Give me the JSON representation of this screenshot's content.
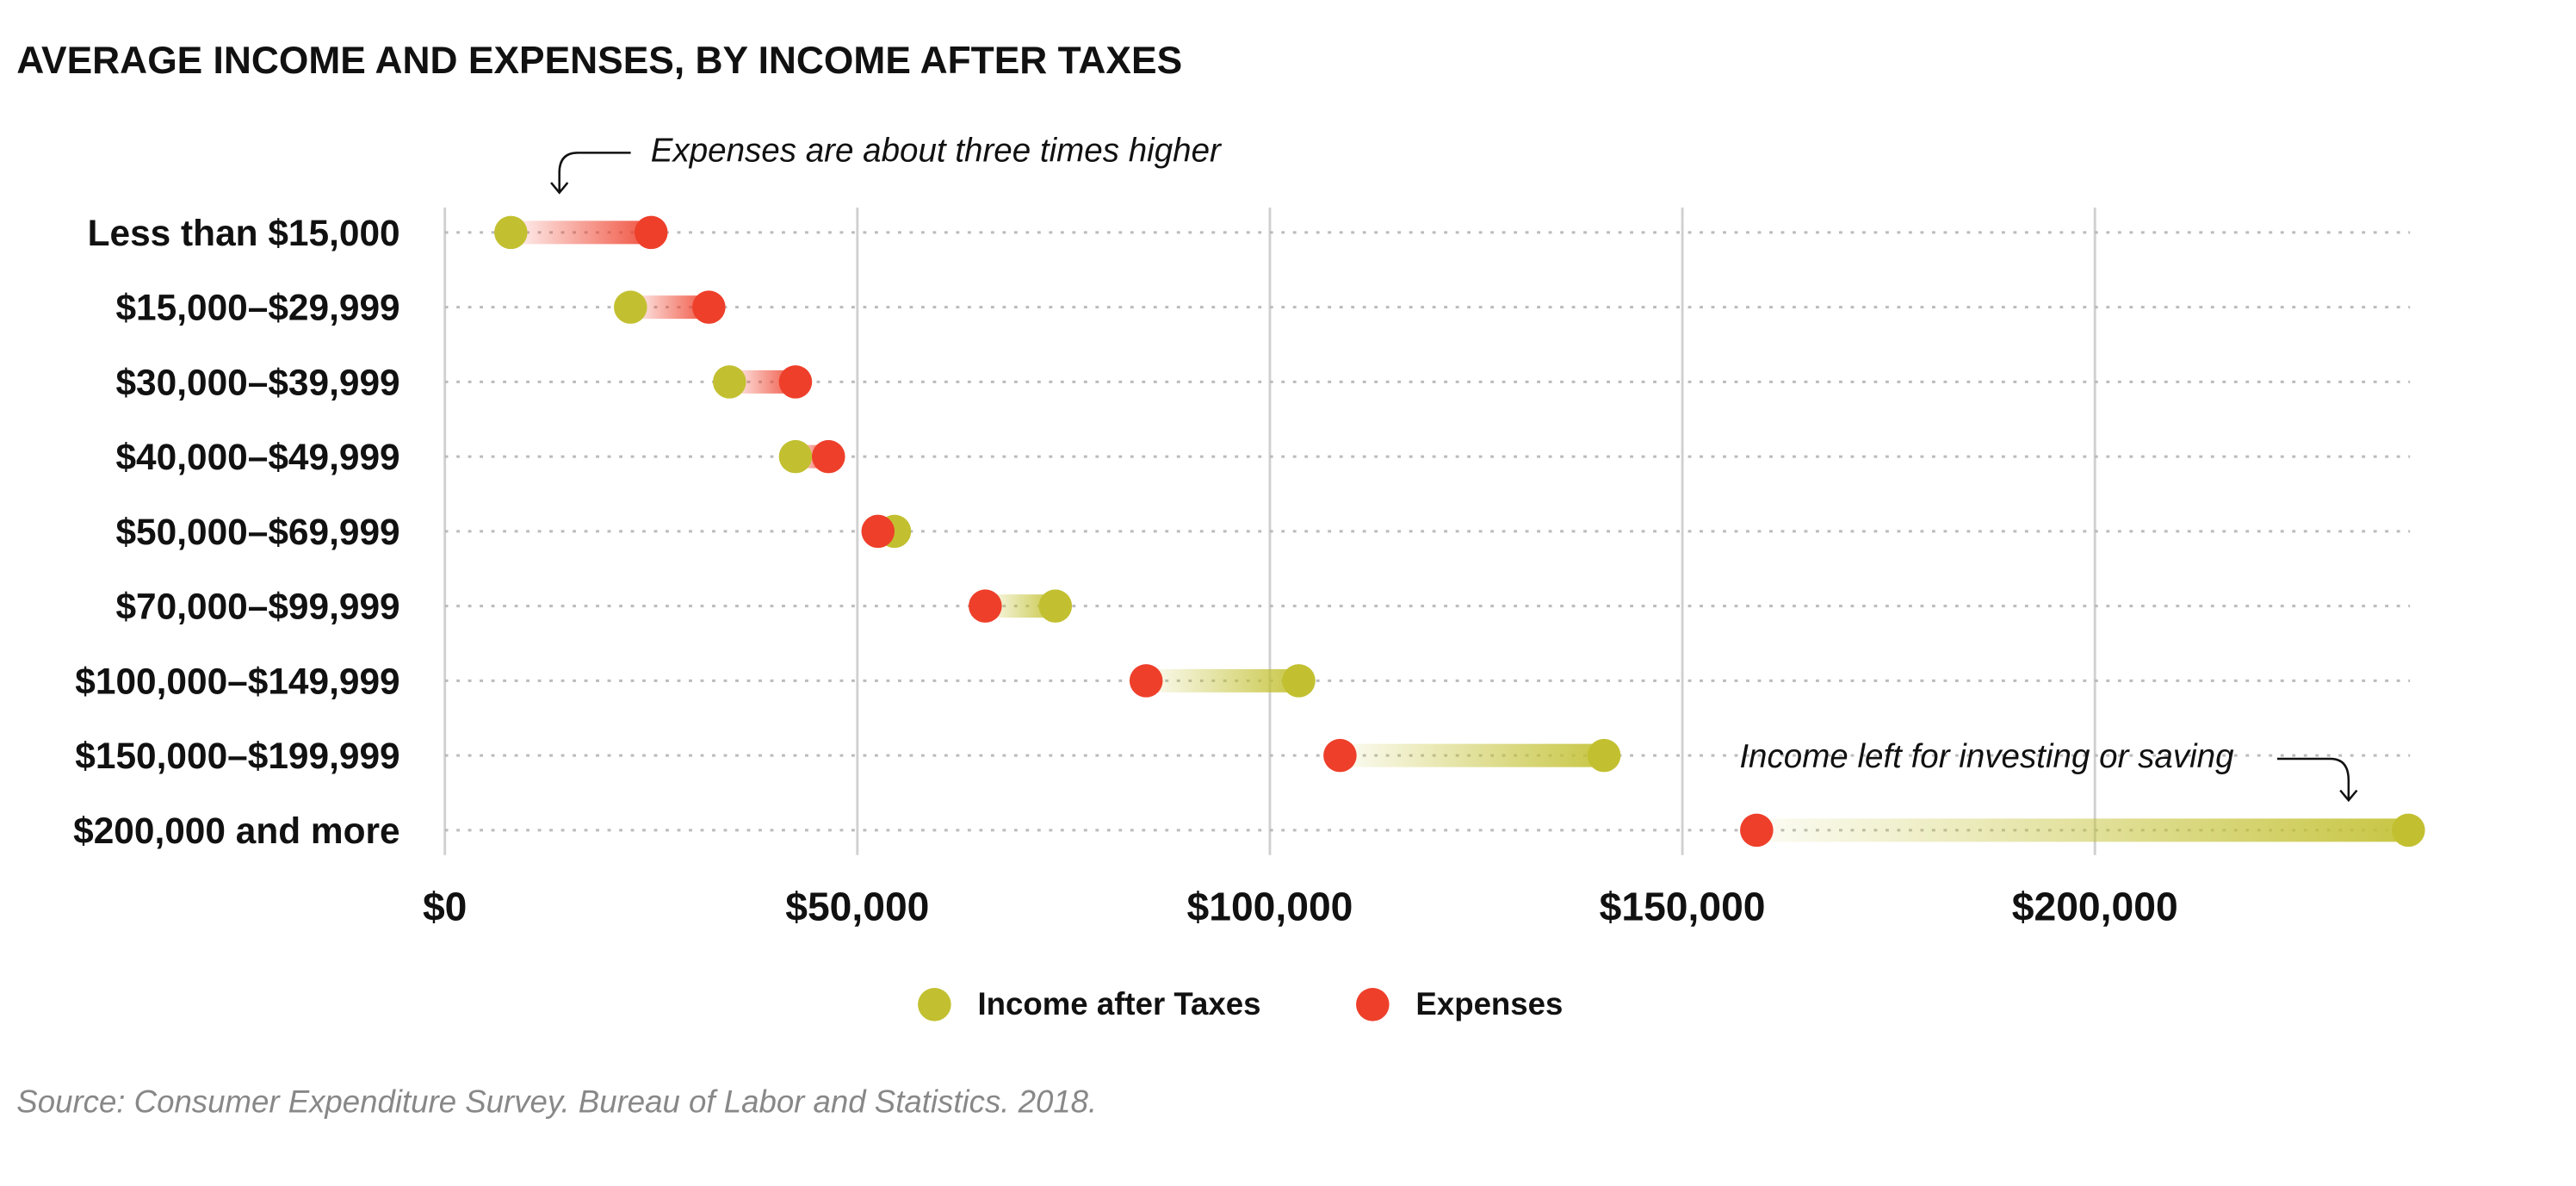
{
  "chart_data": {
    "type": "dumbbell",
    "title": "AVERAGE INCOME AND EXPENSES, BY INCOME AFTER TAXES",
    "categories": [
      "Less than $15,000",
      "$15,000–$29,999",
      "$30,000–$39,999",
      "$40,000–$49,999",
      "$50,000–$69,999",
      "$70,000–$99,999",
      "$100,000–$149,999",
      "$150,000–$199,999",
      "$200,000 and more"
    ],
    "series": [
      {
        "name": "Income after Taxes",
        "color": "#c2c030",
        "values": [
          8000,
          22500,
          34500,
          42500,
          54500,
          74000,
          103500,
          140500,
          238000
        ]
      },
      {
        "name": "Expenses",
        "color": "#ee3f2a",
        "values": [
          25000,
          32000,
          42500,
          46500,
          52500,
          65500,
          85000,
          108500,
          159000
        ]
      }
    ],
    "xlim": [
      0,
      240000
    ],
    "xticks": [
      {
        "value": 0,
        "label": "$0"
      },
      {
        "value": 50000,
        "label": "$50,000"
      },
      {
        "value": 100000,
        "label": "$100,000"
      },
      {
        "value": 150000,
        "label": "$150,000"
      },
      {
        "value": 200000,
        "label": "$200,000"
      }
    ],
    "grid": true,
    "annotations": [
      "Expenses are about three times higher",
      "Income left for investing or saving"
    ],
    "source": "Source: Consumer Expenditure Survey. Bureau of Labor and Statistics. 2018."
  }
}
